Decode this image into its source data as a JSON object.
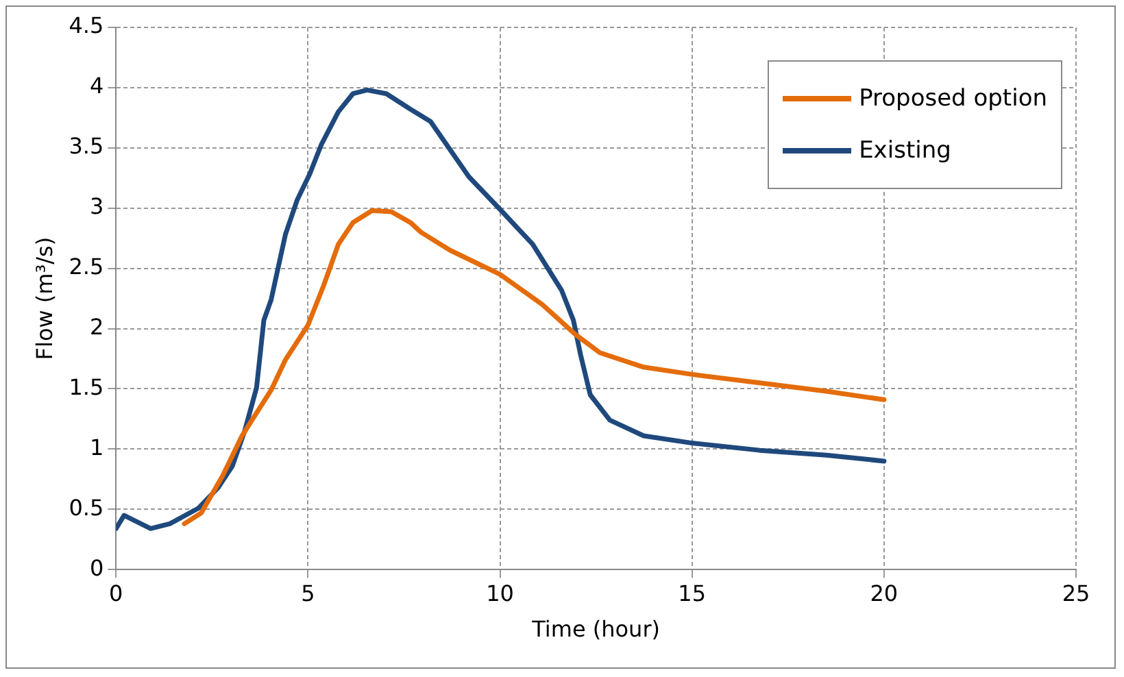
{
  "chart_data": {
    "type": "line",
    "xlabel": "Time (hour)",
    "ylabel": "Flow (m³/s)",
    "xlim": [
      0,
      25
    ],
    "xticks": [
      0,
      5,
      10,
      15,
      20,
      25
    ],
    "ylim": [
      0,
      4.5
    ],
    "yticks": [
      0,
      0.5,
      1,
      1.5,
      2,
      2.5,
      3,
      3.5,
      4,
      4.5
    ],
    "grid": true,
    "legend": "top right",
    "marker": "none",
    "line_style": "solid",
    "series": [
      {
        "name": "Proposed option",
        "color": "#e46c0a",
        "x": [
          1.78,
          2.22,
          2.78,
          3.28,
          4.04,
          4.41,
          5,
          5.41,
          5.79,
          6.17,
          6.67,
          7.17,
          7.67,
          7.94,
          8.7,
          10,
          11.1,
          11.97,
          12.6,
          13.74,
          15,
          16.76,
          18.5,
          20
        ],
        "values": [
          0.38,
          0.47,
          0.78,
          1.11,
          1.49,
          1.74,
          2.03,
          2.36,
          2.7,
          2.88,
          2.98,
          2.97,
          2.88,
          2.8,
          2.65,
          2.45,
          2.2,
          1.95,
          1.8,
          1.68,
          1.62,
          1.55,
          1.48,
          1.41
        ]
      },
      {
        "name": "Existing",
        "color": "#1f497d",
        "x": [
          0,
          0.21,
          0.9,
          1.4,
          2.15,
          2.66,
          3.03,
          3.35,
          3.66,
          3.85,
          4.04,
          4.41,
          4.72,
          5.04,
          5.35,
          5.79,
          6.17,
          6.54,
          7.04,
          7.67,
          8.19,
          9.19,
          10,
          10.85,
          11.6,
          11.91,
          12.1,
          12.35,
          12.86,
          13.74,
          15,
          16.76,
          18.5,
          20
        ],
        "values": [
          0.34,
          0.45,
          0.34,
          0.38,
          0.51,
          0.68,
          0.86,
          1.15,
          1.51,
          2.07,
          2.24,
          2.78,
          3.07,
          3.28,
          3.53,
          3.8,
          3.95,
          3.98,
          3.95,
          3.82,
          3.72,
          3.26,
          2.99,
          2.7,
          2.32,
          2.07,
          1.78,
          1.45,
          1.24,
          1.11,
          1.05,
          0.99,
          0.95,
          0.9
        ]
      }
    ]
  }
}
